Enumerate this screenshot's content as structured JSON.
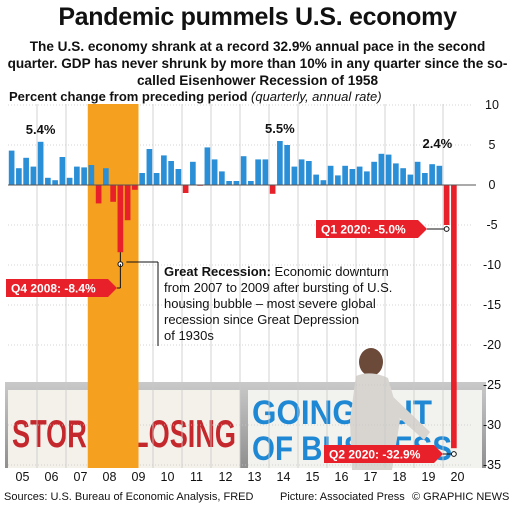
{
  "title": "Pandemic pummels U.S. economy",
  "subtitle": "The U.S. economy shrank at a record 32.9% annual pace in the second quarter. GDP has never shrunk by more than 10% in any quarter since the so-called Eisenhower Recession of 1958",
  "plot_label": {
    "main": "Percent change from preceding period",
    "note": "(quarterly, annual rate)"
  },
  "chart_data": {
    "type": "bar",
    "ylim": [
      -35,
      10
    ],
    "yticks": [
      10,
      5,
      0,
      -5,
      -10,
      -15,
      -20,
      -25,
      -30,
      -35
    ],
    "x_tick_labels": [
      "05",
      "06",
      "07",
      "08",
      "09",
      "10",
      "11",
      "12",
      "13",
      "14",
      "15",
      "16",
      "17",
      "18",
      "19",
      "20"
    ],
    "x_start_year": 2005,
    "values": [
      4.3,
      2.1,
      3.4,
      2.3,
      5.4,
      0.9,
      0.6,
      3.5,
      0.9,
      2.3,
      2.2,
      2.5,
      -2.3,
      2.1,
      -2.1,
      -8.4,
      -4.4,
      -0.6,
      1.5,
      4.5,
      1.5,
      3.7,
      3.0,
      2.0,
      -1.0,
      2.9,
      -0.1,
      4.7,
      3.2,
      1.7,
      0.5,
      0.5,
      3.6,
      0.5,
      3.2,
      3.2,
      -1.1,
      5.5,
      5.0,
      2.3,
      3.2,
      3.0,
      1.3,
      0.6,
      2.4,
      1.2,
      2.4,
      2.0,
      2.3,
      1.7,
      2.9,
      3.9,
      3.8,
      2.7,
      2.1,
      1.3,
      2.9,
      1.5,
      2.6,
      2.4,
      -5.0,
      -32.9
    ],
    "shaded_period": "Great Recession",
    "annotations": [
      {
        "label": "5.4%",
        "value": 5.4
      },
      {
        "label": "5.5%",
        "value": 5.5
      },
      {
        "label": "2.4%",
        "value": 2.4
      },
      {
        "label": "Q4 2008: -8.4%",
        "value": -8.4
      },
      {
        "label": "Q1 2020: -5.0%",
        "value": -5.0
      },
      {
        "label": "Q2 2020: -32.9%",
        "value": -32.9
      }
    ],
    "great_recession_note": {
      "heading": "Great Recession:",
      "lines": [
        "Economic downturn",
        "from 2007 to 2009 after bursting of U.S.",
        "housing bubble – most severe global",
        "recession since Great Depression",
        "of 1930s"
      ]
    },
    "colors": {
      "bar": "#2a8fd6",
      "negative": "#e8202a",
      "recession": "#f5a01f",
      "photo_bg": "#9a9a9a"
    }
  },
  "photo": {
    "sign_left": "STORE CLOSING",
    "sign_right_line1": "GOING OUT",
    "sign_right_line2": "OF BUSINESS"
  },
  "footer": {
    "sources": "Sources: U.S. Bureau of Economic Analysis, FRED",
    "picture": "Picture: Associated Press",
    "credit": "© GRAPHIC NEWS"
  }
}
